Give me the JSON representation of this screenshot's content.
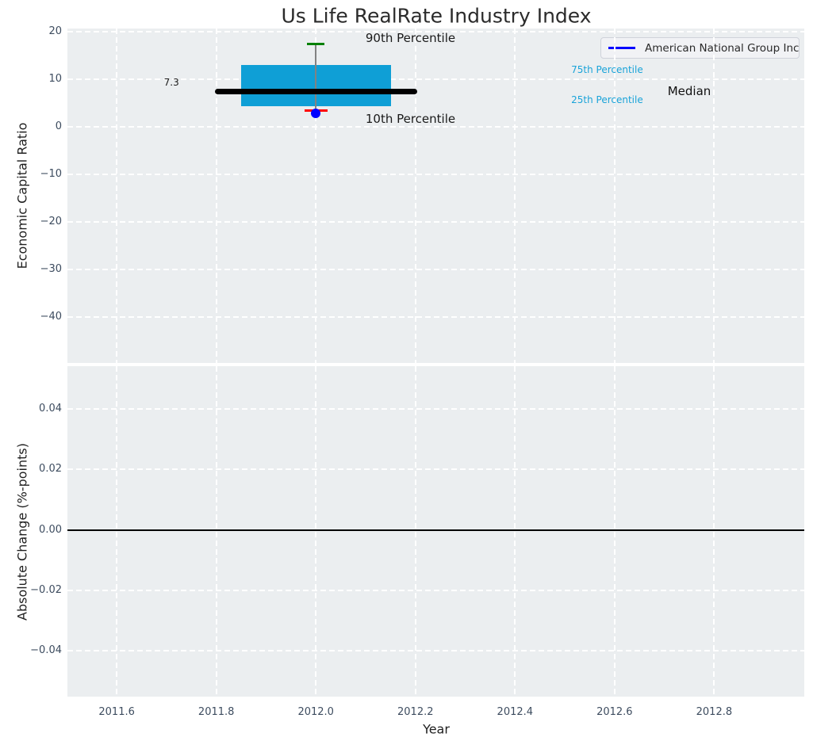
{
  "chart_data": {
    "type": "boxplot",
    "title": "Us Life RealRate Industry Index",
    "x_axis": {
      "label": "Year",
      "xlim": [
        2011.501,
        2012.981
      ],
      "ticks": [
        {
          "value": 2011.6,
          "label": "2011.6"
        },
        {
          "value": 2011.8,
          "label": "2011.8"
        },
        {
          "value": 2012.0,
          "label": "2012.0"
        },
        {
          "value": 2012.2,
          "label": "2012.2"
        },
        {
          "value": 2012.4,
          "label": "2012.4"
        },
        {
          "value": 2012.6,
          "label": "2012.6"
        },
        {
          "value": 2012.8,
          "label": "2012.8"
        }
      ]
    },
    "top_panel": {
      "ylabel": "Economic Capital Ratio",
      "ylim": [
        -49.7,
        20.6
      ],
      "yticks": [
        {
          "value": 20,
          "label": "20"
        },
        {
          "value": 10,
          "label": "10"
        },
        {
          "value": 0,
          "label": "0"
        },
        {
          "value": -10,
          "label": "−10"
        },
        {
          "value": -20,
          "label": "−20"
        },
        {
          "value": -30,
          "label": "−30"
        },
        {
          "value": -40,
          "label": "−40"
        }
      ],
      "box": {
        "x": 2012.0,
        "p90": 17.4,
        "p75": 13.0,
        "median": 7.3,
        "p25": 4.2,
        "p10": 3.4,
        "company_value": 2.7,
        "box_halfwidth": 0.1505,
        "median_halfwidth": 0.2,
        "p90_cap_halfwidth": 0.0177,
        "p10_cap_halfwidth": 0.023
      },
      "legend": {
        "label": "American National Group Inc",
        "color": "#0000ff"
      },
      "annotations": [
        {
          "text": "90th Percentile",
          "x": 2012.19,
          "y": 18.6,
          "color": "#1a1a1a",
          "size": 15
        },
        {
          "text": "10th Percentile",
          "x": 2012.19,
          "y": 1.6,
          "color": "#1a1a1a",
          "size": 15
        },
        {
          "text": "7.3",
          "x": 2011.71,
          "y": 9.2,
          "color": "#1a1a1a",
          "size": 12
        },
        {
          "text": "75th Percentile",
          "x": 2012.585,
          "y": 12.0,
          "color": "#19a3d9",
          "size": 12
        },
        {
          "text": "25th Percentile",
          "x": 2012.585,
          "y": 5.65,
          "color": "#19a3d9",
          "size": 12
        },
        {
          "text": "Median",
          "x": 2012.75,
          "y": 7.5,
          "color": "#111111",
          "size": 15
        }
      ]
    },
    "bottom_panel": {
      "ylabel": "Absolute Change (%-points)",
      "ylim": [
        -0.0551,
        0.0542
      ],
      "yticks": [
        {
          "value": 0.04,
          "label": "0.04"
        },
        {
          "value": 0.02,
          "label": "0.02"
        },
        {
          "value": 0.0,
          "label": "0.00"
        },
        {
          "value": -0.02,
          "label": "−0.02"
        },
        {
          "value": -0.04,
          "label": "−0.04"
        }
      ],
      "zero_line": 0.0
    },
    "colors": {
      "box_fill": "#0f9fd6",
      "median": "#000000",
      "p90_cap": "#008000",
      "p10_cap": "#ff0000",
      "company_dot": "#0000ff",
      "plot_background": "#ebeef0",
      "grid": "#ffffff",
      "tick_text": "#3d4c5f"
    }
  }
}
